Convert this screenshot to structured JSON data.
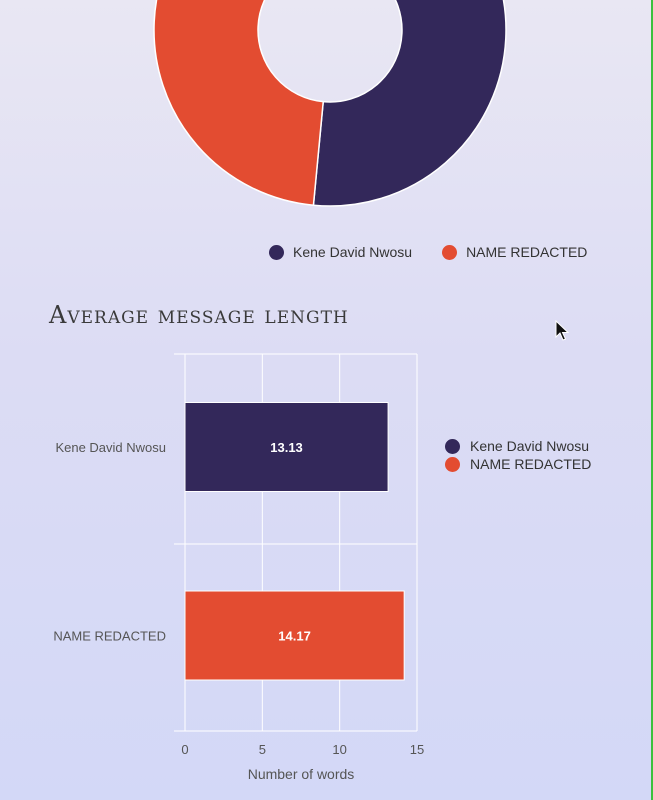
{
  "donut": {
    "chart_data": {
      "type": "pie",
      "labels": [
        "Kene David Nwosu",
        "NAME REDACTED"
      ],
      "values": [
        51.5,
        48.5
      ]
    }
  },
  "section_title": "Average message length",
  "chart_data": {
    "type": "bar",
    "orientation": "horizontal",
    "categories": [
      "Kene David Nwosu",
      "NAME REDACTED"
    ],
    "values": [
      13.13,
      14.17
    ],
    "data_labels": [
      "13.13",
      "14.17"
    ],
    "xlabel": "Number of words",
    "ylabel": "",
    "xlim": [
      0,
      15
    ],
    "xticks": [
      "0",
      "5",
      "10",
      "15"
    ],
    "grid": true,
    "legend": "right"
  },
  "legend": [
    {
      "name": "Kene David Nwosu",
      "color": "#33285a"
    },
    {
      "name": "NAME REDACTED",
      "color": "#e34c31"
    }
  ],
  "colors": {
    "series_1": "#33285a",
    "series_2": "#e34c31"
  },
  "icons": {
    "cursor": "mouse-pointer-icon"
  }
}
